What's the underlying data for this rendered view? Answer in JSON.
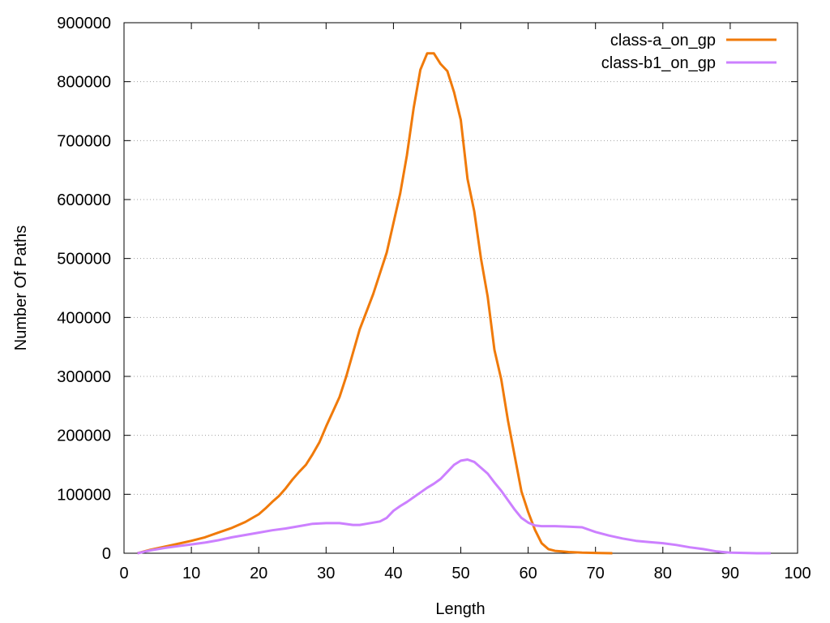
{
  "chart_data": {
    "type": "line",
    "title": "",
    "xlabel": "Length",
    "ylabel": "Number Of Paths",
    "xlim": [
      0,
      100
    ],
    "ylim": [
      0,
      900000
    ],
    "xticks": [
      "0",
      "10",
      "20",
      "30",
      "40",
      "50",
      "60",
      "70",
      "80",
      "90",
      "100"
    ],
    "yticks": [
      "0",
      "100000",
      "200000",
      "300000",
      "400000",
      "500000",
      "600000",
      "700000",
      "800000",
      "900000"
    ],
    "grid": "y-dotted",
    "legend_position": "top-right",
    "series": [
      {
        "name": "class-a_on_gp",
        "color": "#f07a0a",
        "x": [
          2,
          4,
          6,
          8,
          10,
          12,
          14,
          16,
          18,
          20,
          21,
          22,
          23,
          24,
          25,
          26,
          27,
          28,
          29,
          30,
          31,
          32,
          33,
          34,
          35,
          36,
          37,
          38,
          39,
          40,
          41,
          42,
          43,
          44,
          45,
          46,
          47,
          48,
          49,
          50,
          51,
          52,
          53,
          54,
          55,
          56,
          57,
          58,
          59,
          60,
          61,
          62,
          63,
          64,
          65,
          66,
          68,
          70,
          72.5
        ],
        "y": [
          0,
          6000,
          11000,
          16000,
          21000,
          27000,
          35000,
          43000,
          53000,
          66000,
          76000,
          87000,
          97000,
          110000,
          125000,
          138000,
          150000,
          168000,
          188000,
          215000,
          240000,
          265000,
          300000,
          340000,
          380000,
          410000,
          440000,
          475000,
          510000,
          560000,
          610000,
          675000,
          755000,
          820000,
          848000,
          848000,
          830000,
          818000,
          782000,
          735000,
          635000,
          580000,
          500000,
          435000,
          345000,
          295000,
          225000,
          165000,
          105000,
          70000,
          40000,
          17000,
          7000,
          4000,
          3000,
          2000,
          1000,
          500,
          0
        ]
      },
      {
        "name": "class-b1_on_gp",
        "color": "#cc80ff",
        "x": [
          2,
          4,
          6,
          8,
          10,
          12,
          14,
          16,
          18,
          20,
          22,
          24,
          26,
          28,
          30,
          32,
          34,
          35,
          36,
          38,
          39,
          40,
          41,
          42,
          43,
          44,
          45,
          46,
          47,
          48,
          49,
          50,
          51,
          52,
          53,
          54,
          55,
          56,
          57,
          58,
          59,
          60,
          61,
          62,
          63,
          64,
          66,
          68,
          70,
          72,
          74,
          76,
          78,
          80,
          82,
          84,
          86,
          88,
          90,
          92,
          94,
          96
        ],
        "y": [
          0,
          5000,
          9000,
          12000,
          15000,
          18000,
          22000,
          27000,
          31000,
          35000,
          39000,
          42000,
          46000,
          50000,
          51000,
          51000,
          48000,
          48000,
          50000,
          54000,
          60000,
          72000,
          80000,
          87000,
          95000,
          103000,
          111000,
          118000,
          126000,
          138000,
          150000,
          157000,
          159000,
          155000,
          145000,
          135000,
          120000,
          106000,
          90000,
          74000,
          60000,
          52000,
          47000,
          46000,
          46000,
          46000,
          45000,
          44000,
          36000,
          30000,
          25000,
          21000,
          19000,
          17000,
          14000,
          10000,
          7000,
          3000,
          1000,
          500,
          0,
          0
        ]
      }
    ]
  }
}
